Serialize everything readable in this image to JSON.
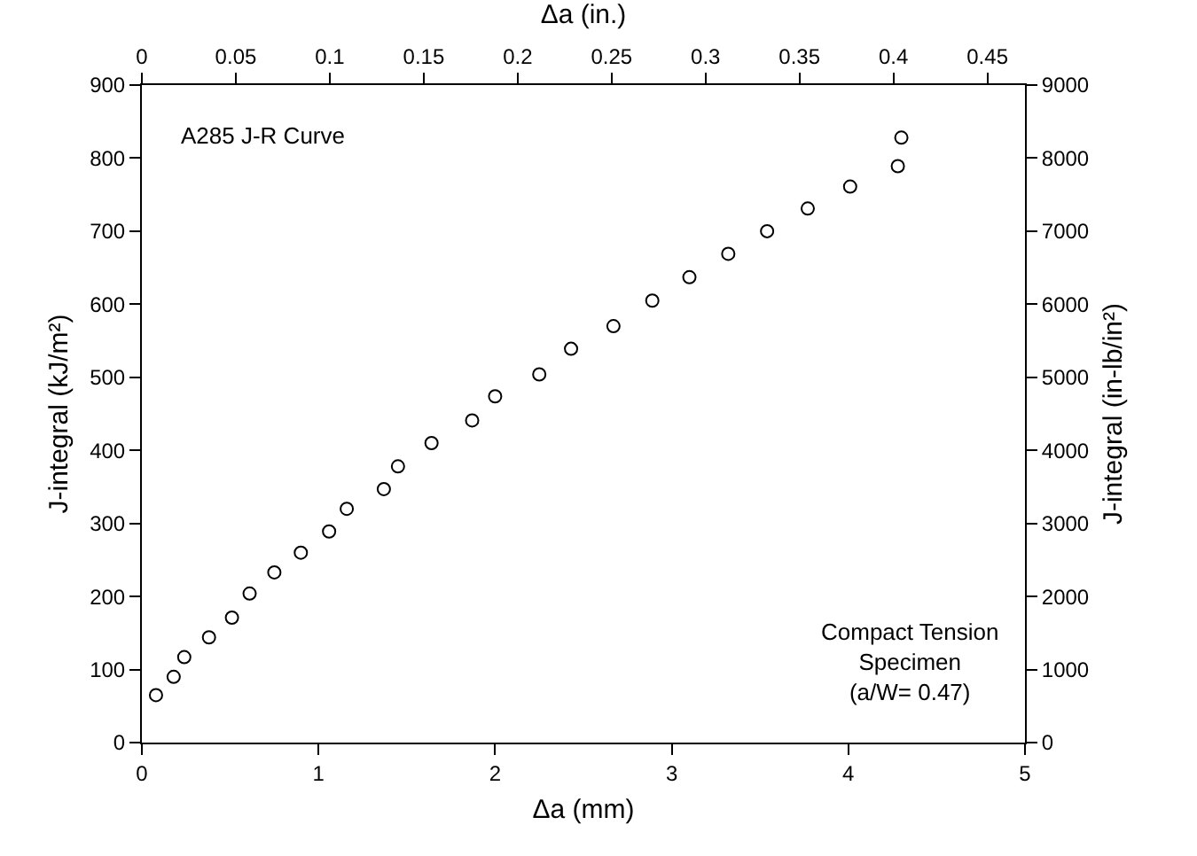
{
  "chart_data": {
    "type": "scatter",
    "marker": "circle",
    "x": [
      0.08,
      0.18,
      0.24,
      0.38,
      0.51,
      0.61,
      0.75,
      0.9,
      1.06,
      1.16,
      1.37,
      1.45,
      1.64,
      1.87,
      2.0,
      2.25,
      2.43,
      2.67,
      2.89,
      3.1,
      3.32,
      3.54,
      3.77,
      4.01,
      4.28,
      4.3
    ],
    "series": [
      {
        "color": "#000000",
        "values": [
          65,
          90,
          117,
          144,
          171,
          204,
          233,
          260,
          289,
          320,
          347,
          378,
          410,
          441,
          474,
          504,
          539,
          570,
          605,
          637,
          669,
          700,
          731,
          761,
          789,
          828
        ]
      }
    ],
    "xlabel": "Δa (mm)",
    "x2label": "Δa (in.)",
    "ylabel": "J-integral (kJ/m²)",
    "y2label": "J-integral (in-lb/in²)",
    "xlim": [
      0,
      5
    ],
    "xticks": [
      0,
      1,
      2,
      3,
      4,
      5
    ],
    "x2lim": [
      0,
      0.47
    ],
    "x2ticks": [
      0,
      0.05,
      0.1,
      0.15,
      0.2,
      0.25,
      0.3,
      0.35,
      0.4,
      0.45
    ],
    "ylim": [
      0,
      900
    ],
    "yticks": [
      0,
      100,
      200,
      300,
      400,
      500,
      600,
      700,
      800,
      900
    ],
    "y2lim": [
      0,
      9000
    ],
    "y2ticks": [
      0,
      1000,
      2000,
      3000,
      4000,
      5000,
      6000,
      7000,
      8000,
      9000
    ],
    "annotations": [
      "A285 J-R Curve",
      "Compact Tension\nSpecimen\n(a/W= 0.47)"
    ],
    "grid": false
  }
}
